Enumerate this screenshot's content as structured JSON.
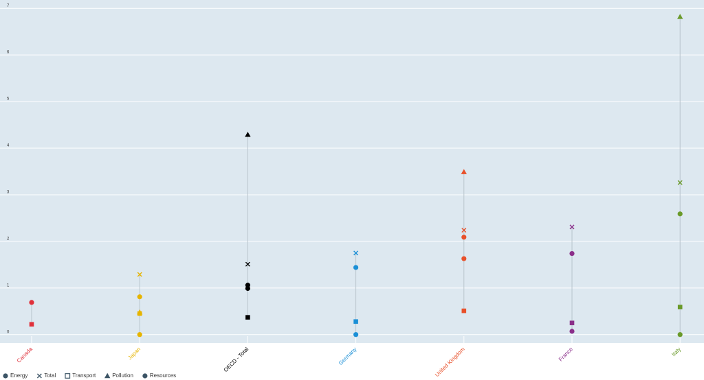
{
  "chart_data": {
    "type": "dot",
    "categories": [
      "Canada",
      "Japan",
      "OECD - Total",
      "Germany",
      "United Kingdom",
      "France",
      "Italy"
    ],
    "category_colors": [
      "#e0303a",
      "#e6b400",
      "#000000",
      "#1a8fd6",
      "#e8502a",
      "#8b2f8a",
      "#6a9a2a"
    ],
    "series": [
      {
        "name": "Energy",
        "marker": "circle",
        "values": [
          0.69,
          0.81,
          1.06,
          1.44,
          2.09,
          1.74,
          2.59
        ]
      },
      {
        "name": "Total",
        "marker": "cross",
        "values": [
          null,
          1.29,
          1.51,
          1.75,
          2.24,
          2.31,
          3.26
        ]
      },
      {
        "name": "Transport",
        "marker": "square",
        "values": [
          0.22,
          0.45,
          0.37,
          0.28,
          0.51,
          0.25,
          0.59
        ]
      },
      {
        "name": "Pollution",
        "marker": "triangle",
        "values": [
          null,
          0.48,
          4.29,
          null,
          3.49,
          null,
          6.82
        ]
      },
      {
        "name": "Resources",
        "marker": "circle",
        "values": [
          null,
          0,
          0.99,
          0,
          1.63,
          0.07,
          0
        ]
      }
    ],
    "legend_color": "#3d5566",
    "ylim": [
      -0.18,
      7.18
    ],
    "yticks": [
      0,
      1,
      2,
      3,
      4,
      5,
      6,
      7
    ],
    "grid": true
  }
}
